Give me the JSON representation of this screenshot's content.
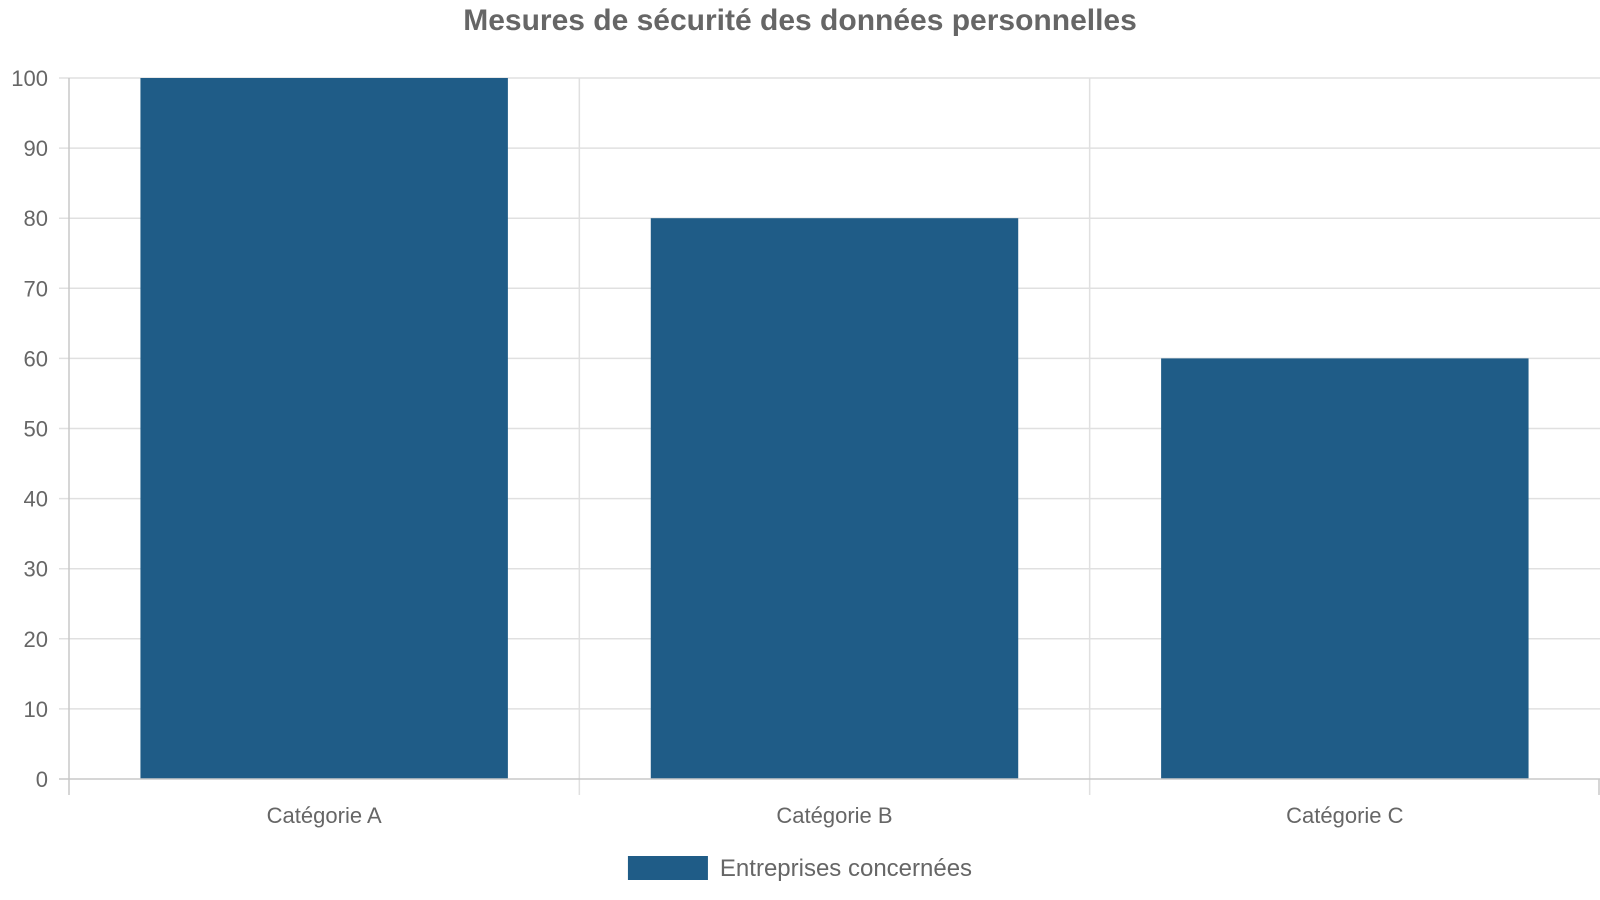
{
  "chart_data": {
    "type": "bar",
    "title": "Mesures de sécurité des données personnelles",
    "categories": [
      "Catégorie A",
      "Catégorie B",
      "Catégorie C"
    ],
    "series": [
      {
        "name": "Entreprises concernées",
        "values": [
          100,
          80,
          60
        ],
        "color": "#1f5c87"
      }
    ],
    "xlabel": "",
    "ylabel": "",
    "ylim": [
      0,
      100
    ],
    "yticks": [
      0,
      10,
      20,
      30,
      40,
      50,
      60,
      70,
      80,
      90,
      100
    ],
    "grid": true,
    "legend_position": "bottom-center"
  }
}
